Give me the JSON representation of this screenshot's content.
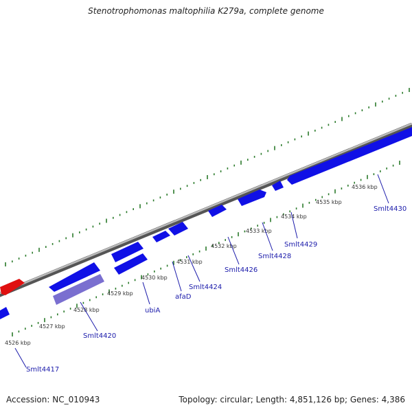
{
  "title": "Stenotrophomonas maltophilia K279a, complete genome",
  "footer": {
    "accession": "Accession: NC_010943",
    "summary": "Topology: circular; Length: 4,851,126 bp; Genes: 4,386"
  },
  "colors": {
    "forward_gene": "#1010e6",
    "reverse_gene": "#1010e6",
    "highlight_gene": "#7a6fd0",
    "rna_gene": "#e01010",
    "backbone": "#8a8a8a",
    "ticks": "#2a7a2a",
    "labels": "#1a1aaa"
  },
  "scale_labels": [
    "4526 kbp",
    "4527 kbp",
    "4528 kbp",
    "4529 kbp",
    "4530 kbp",
    "4531 kbp",
    "4532 kbp",
    "4533 kbp",
    "4534 kbp",
    "4535 kbp",
    "4536 kbp"
  ],
  "gene_labels": [
    "Smlt4417",
    "Smlt4420",
    "ubiA",
    "afaD",
    "Smlt4424",
    "Smlt4426",
    "Smlt4428",
    "Smlt4429",
    "Smlt4430"
  ]
}
